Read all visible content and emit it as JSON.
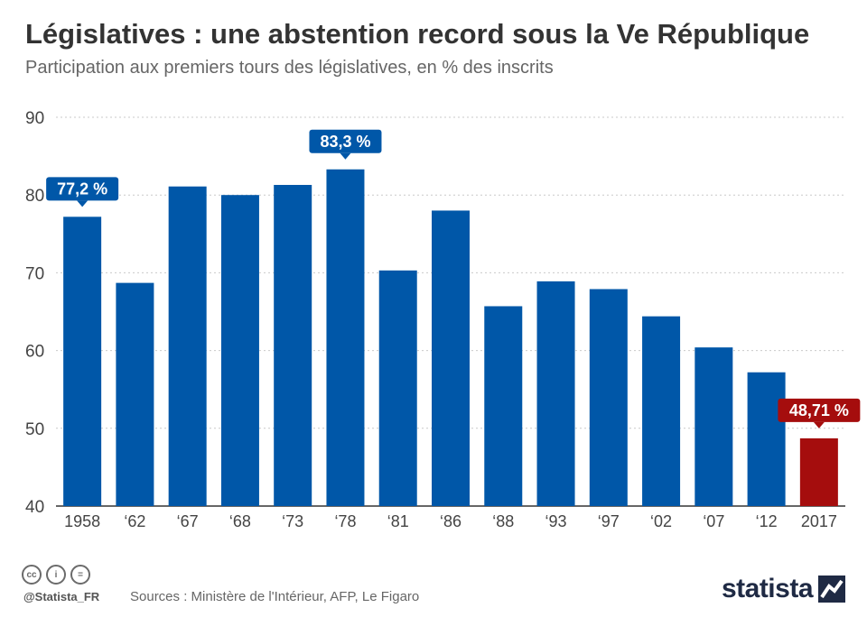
{
  "header": {
    "title": "Législatives : une abstention record sous la Ve République",
    "subtitle": "Participation aux premiers tours des législatives, en % des inscrits"
  },
  "chart_data": {
    "type": "bar",
    "categories": [
      "1958",
      "‘62",
      "‘67",
      "‘68",
      "‘73",
      "‘78",
      "‘81",
      "‘86",
      "‘88",
      "‘93",
      "‘97",
      "‘02",
      "‘07",
      "‘12",
      "2017"
    ],
    "values": [
      77.2,
      68.7,
      81.1,
      80.0,
      81.3,
      83.3,
      70.3,
      78.0,
      65.7,
      68.9,
      67.9,
      64.4,
      60.4,
      57.2,
      48.71
    ],
    "ylim": [
      40,
      90
    ],
    "yticks": [
      40,
      50,
      60,
      70,
      80,
      90
    ],
    "grid": true,
    "colors": {
      "default": "#0057a8",
      "highlight": "#a50d0d"
    },
    "highlight_index": 14,
    "annotations": [
      {
        "index": 0,
        "label": "77,2 %",
        "color": "#0057a8"
      },
      {
        "index": 5,
        "label": "83,3 %",
        "color": "#0057a8"
      },
      {
        "index": 14,
        "label": "48,71 %",
        "color": "#a50d0d"
      }
    ]
  },
  "footer": {
    "license_icons": [
      "cc-icon",
      "by-icon",
      "nd-icon"
    ],
    "license_glyphs": [
      "cc",
      "i",
      "="
    ],
    "handle": "@Statista_FR",
    "sources": "Sources : Ministère de l'Intérieur, AFP, Le Figaro",
    "logo": "statista"
  }
}
